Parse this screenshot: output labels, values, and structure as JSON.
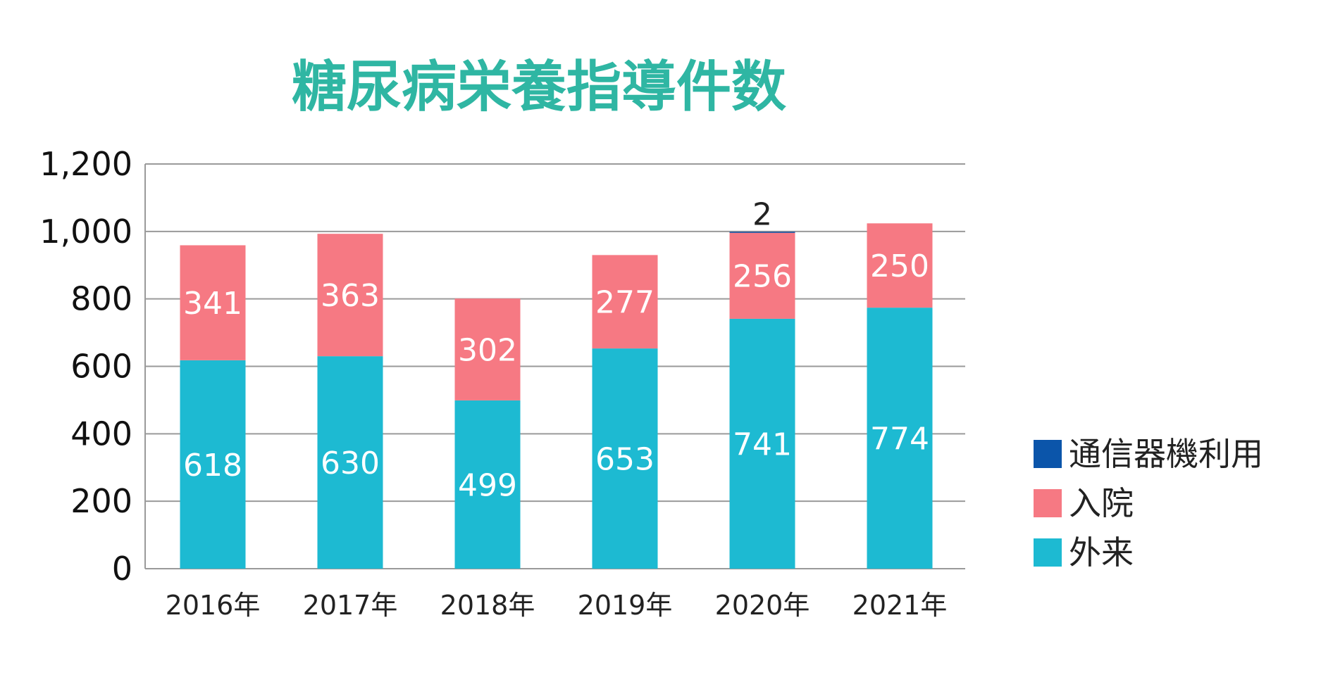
{
  "chart_data": {
    "type": "bar",
    "stacked": true,
    "title": "糖尿病栄養指導件数",
    "title_color": "#2fb6a3",
    "categories": [
      "2016年",
      "2017年",
      "2018年",
      "2019年",
      "2020年",
      "2021年"
    ],
    "series": [
      {
        "name": "外来",
        "color": "#1dbad2",
        "values": [
          618,
          630,
          499,
          653,
          741,
          774
        ]
      },
      {
        "name": "入院",
        "color": "#f67983",
        "values": [
          341,
          363,
          302,
          277,
          256,
          250
        ]
      },
      {
        "name": "通信器機利用",
        "color": "#0b55aa",
        "values": [
          0,
          0,
          0,
          0,
          2,
          0
        ]
      }
    ],
    "ylim": [
      0,
      1200
    ],
    "yticks": [
      "0",
      "200",
      "400",
      "600",
      "800",
      "1,000",
      "1,200"
    ],
    "ytick_values": [
      0,
      200,
      400,
      600,
      800,
      1000,
      1200
    ],
    "grid": true,
    "grid_color": "#9a9a9a",
    "legend_position": "right",
    "legend_order": [
      "通信器機利用",
      "入院",
      "外来"
    ],
    "xlabel": "",
    "ylabel": ""
  }
}
